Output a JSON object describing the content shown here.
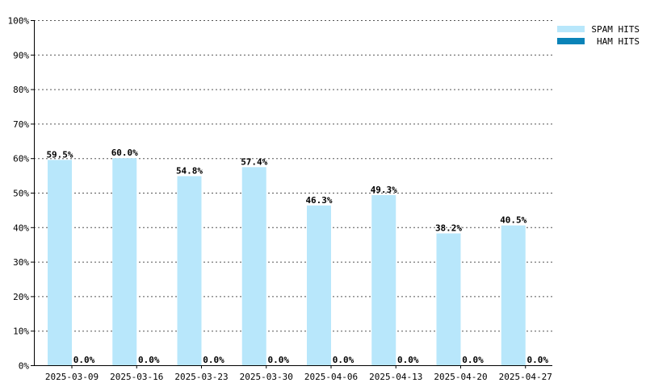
{
  "chart_data": {
    "type": "bar",
    "categories": [
      "2025-03-09",
      "2025-03-16",
      "2025-03-23",
      "2025-03-30",
      "2025-04-06",
      "2025-04-13",
      "2025-04-20",
      "2025-04-27"
    ],
    "series": [
      {
        "name": "SPAM HITS",
        "color": "#b8e7fb",
        "values": [
          59.5,
          60.0,
          54.8,
          57.4,
          46.3,
          49.3,
          38.2,
          40.5
        ],
        "labels": [
          "59.5%",
          "60.0%",
          "54.8%",
          "57.4%",
          "46.3%",
          "49.3%",
          "38.2%",
          "40.5%"
        ]
      },
      {
        "name": "HAM HITS",
        "color": "#0a83b8",
        "values": [
          0.0,
          0.0,
          0.0,
          0.0,
          0.0,
          0.0,
          0.0,
          0.0
        ],
        "labels": [
          "0.0%",
          "0.0%",
          "0.0%",
          "0.0%",
          "0.0%",
          "0.0%",
          "0.0%",
          "0.0%"
        ]
      }
    ],
    "ylim": [
      0,
      100
    ],
    "yticks": [
      0,
      10,
      20,
      30,
      40,
      50,
      60,
      70,
      80,
      90,
      100
    ],
    "ytick_labels": [
      "0%",
      "10%",
      "20%",
      "30%",
      "40%",
      "50%",
      "60%",
      "70%",
      "80%",
      "90%",
      "100%"
    ],
    "grid": true,
    "legend_position": "top-right"
  }
}
